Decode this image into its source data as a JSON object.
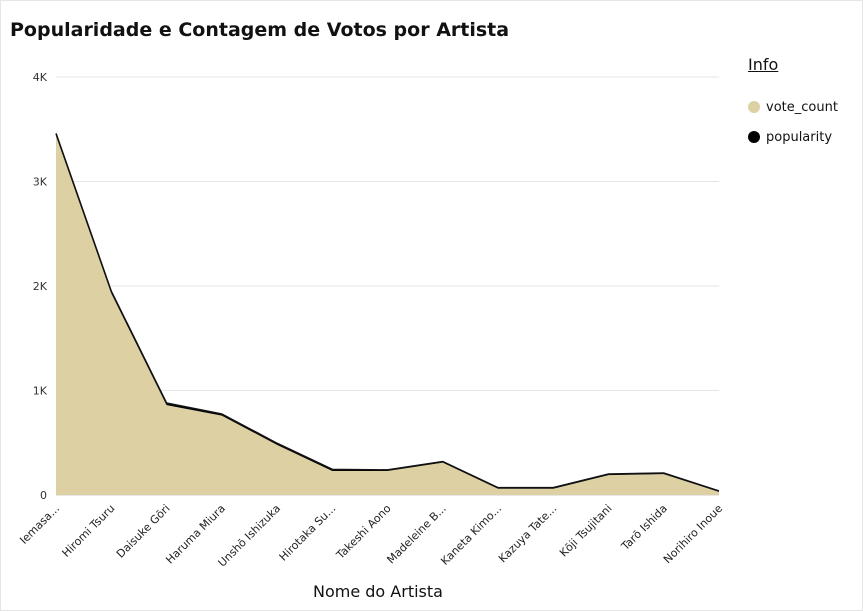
{
  "title": "Popularidade e Contagem de Votos por Artista",
  "legend": {
    "title": "Info",
    "items": [
      {
        "label": "vote_count",
        "color": "#ddd0a3"
      },
      {
        "label": "popularity",
        "color": "#000000"
      }
    ]
  },
  "chart_data": {
    "type": "area",
    "title": "Popularidade e Contagem de Votos por Artista",
    "xlabel": "Nome do Artista",
    "ylabel": "",
    "ylim": [
      0,
      4000
    ],
    "yticks": [
      0,
      1000,
      2000,
      3000,
      4000
    ],
    "ytick_labels": [
      "0",
      "1K",
      "2K",
      "3K",
      "4K"
    ],
    "grid": true,
    "legend_position": "right",
    "categories": [
      "Iemasa...",
      "Hiromi Tsuru",
      "Daisuke Gōri",
      "Haruma Miura",
      "Unshō Ishizuka",
      "Hirotaka Su...",
      "Takeshi Aono",
      "Madeleine B...",
      "Kaneta Kimo...",
      "Kazuya Tate...",
      "Kōji Tsujitani",
      "Tarō Ishida",
      "Norihiro Inoue"
    ],
    "series": [
      {
        "name": "vote_count",
        "color": "#ddd0a3",
        "values": [
          3440,
          1930,
          860,
          760,
          480,
          230,
          230,
          310,
          60,
          60,
          190,
          200,
          30
        ]
      },
      {
        "name": "popularity",
        "color": "#000000",
        "values": [
          20,
          20,
          20,
          15,
          15,
          15,
          10,
          10,
          10,
          10,
          10,
          10,
          8
        ]
      }
    ]
  }
}
